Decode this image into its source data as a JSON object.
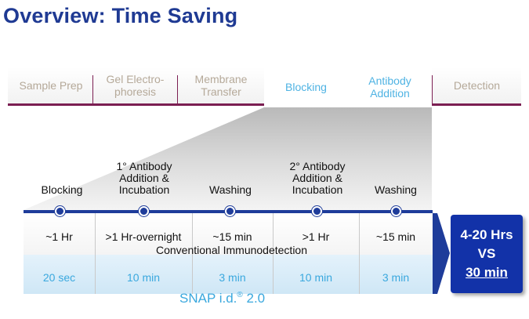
{
  "title": "Overview: Time Saving",
  "workflow_tabs": [
    {
      "line1": "Sample Prep",
      "line2": ""
    },
    {
      "line1": "Gel Electro-",
      "line2": "phoresis"
    },
    {
      "line1": "Membrane",
      "line2": "Transfer"
    },
    {
      "line1": "Blocking",
      "line2": ""
    },
    {
      "line1": "Antibody",
      "line2": "Addition"
    },
    {
      "line1": "Detection",
      "line2": ""
    }
  ],
  "active_tabs": [
    "Blocking",
    "Antibody Addition"
  ],
  "steps": [
    {
      "l1": "",
      "l2": "",
      "l3": "Blocking",
      "conventional": "~1 Hr",
      "snap": "20 sec"
    },
    {
      "l1": "1° Antibody",
      "l2": "Addition &",
      "l3": "Incubation",
      "conventional": ">1 Hr-overnight",
      "snap": "10 min"
    },
    {
      "l1": "",
      "l2": "",
      "l3": "Washing",
      "conventional": "~15 min",
      "snap": "3 min"
    },
    {
      "l1": "2° Antibody",
      "l2": "Addition &",
      "l3": "Incubation",
      "conventional": ">1 Hr",
      "snap": "10 min"
    },
    {
      "l1": "",
      "l2": "",
      "l3": "Washing",
      "conventional": "~15 min",
      "snap": "3 min"
    }
  ],
  "conventional_label": "Conventional Immunodetection",
  "snap_label": {
    "name": "SNAP i.d.",
    "reg": "®",
    "version": " 2.0"
  },
  "result": {
    "line1": "4-20 Hrs",
    "line2": "VS",
    "line3": "30 min"
  },
  "colors": {
    "title": "#1f3a93",
    "accent_blue": "#1e3c9a",
    "tab_line": "#7b1e52",
    "snap_text": "#3aa8de",
    "result_box": "#1232a8"
  }
}
